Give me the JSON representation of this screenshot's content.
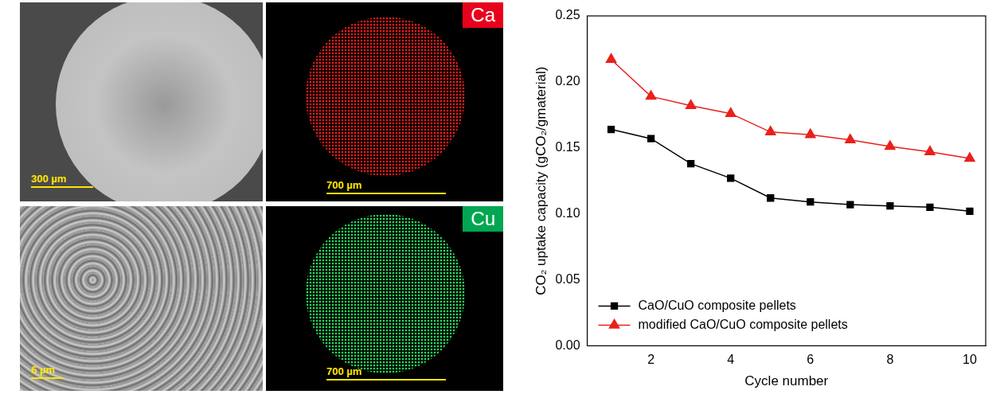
{
  "images": [
    {
      "scale_bar": "300 µm"
    },
    {
      "label": "Ca",
      "color": "#e8001c",
      "scale_bar": "700 µm"
    },
    {
      "scale_bar": "6 µm"
    },
    {
      "label": "Cu",
      "color": "#00a651",
      "scale_bar": "700 µm"
    }
  ],
  "chart_data": {
    "type": "line",
    "x_label": "Cycle number",
    "y_label": "CO₂ uptake capacity (gCO₂/gmaterial)",
    "x": [
      1,
      2,
      3,
      4,
      5,
      6,
      7,
      8,
      9,
      10
    ],
    "series": [
      {
        "name": "CaO/CuO composite pellets",
        "color": "#000000",
        "marker": "square",
        "line_style": "solid",
        "values": [
          0.164,
          0.157,
          0.138,
          0.127,
          0.112,
          0.109,
          0.107,
          0.106,
          0.105,
          0.102
        ]
      },
      {
        "name": "modified CaO/CuO composite pellets",
        "color": "#e8211c",
        "marker": "triangle",
        "line_style": "solid",
        "values": [
          0.217,
          0.189,
          0.182,
          0.176,
          0.162,
          0.16,
          0.156,
          0.151,
          0.147,
          0.142
        ]
      }
    ],
    "xlim": [
      0.4,
      10.4
    ],
    "xticks": [
      2,
      4,
      6,
      8,
      10
    ],
    "ylim": [
      0,
      0.25
    ],
    "yticks": [
      {
        "value": 0,
        "label": "0.00"
      },
      {
        "value": 0.05,
        "label": "0.05"
      },
      {
        "value": 0.1,
        "label": "0.10"
      },
      {
        "value": 0.15,
        "label": "0.15"
      },
      {
        "value": 0.2,
        "label": "0.20"
      },
      {
        "value": 0.25,
        "label": "0.25"
      }
    ],
    "grid": false,
    "legend": "lower left"
  }
}
